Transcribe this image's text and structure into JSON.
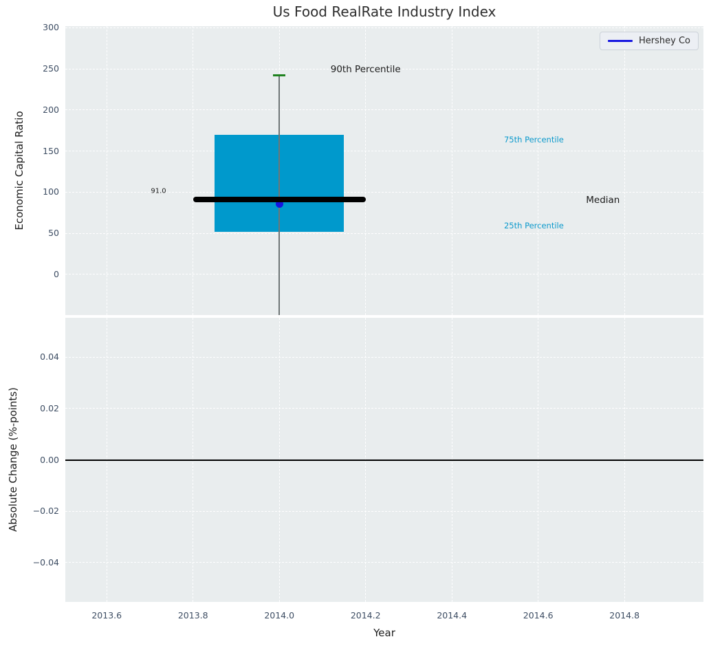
{
  "figure": {
    "title": "Us Food RealRate Industry Index"
  },
  "top_plot": {
    "ylabel": "Economic Capital Ratio",
    "yticks": [
      "300",
      "250",
      "200",
      "150",
      "100",
      "50",
      "0"
    ],
    "ytick_values": [
      300,
      250,
      200,
      150,
      100,
      50,
      0
    ],
    "legend": {
      "label": "Hershey Co"
    }
  },
  "bottom_plot": {
    "ylabel": "Absolute Change (%-points)",
    "yticks": [
      "0.04",
      "0.02",
      "0.00",
      "−0.02",
      "−0.04"
    ],
    "ytick_values": [
      0.04,
      0.02,
      0,
      -0.02,
      -0.04
    ]
  },
  "x_axis": {
    "label": "Year",
    "ticks": [
      "2013.6",
      "2013.8",
      "2014.0",
      "2014.2",
      "2014.4",
      "2014.6",
      "2014.8"
    ],
    "tick_values": [
      2013.6,
      2013.8,
      2014,
      2014.2,
      2014.4,
      2014.6,
      2014.8
    ]
  },
  "colors": {
    "figure_background": "#ffffff",
    "plot_background": "#e9edee",
    "gridline": "#ffffff",
    "tick_label": "#3c4c62",
    "box_fill": "#0099cc",
    "median_line": "#000000",
    "whisker": "#6e7576",
    "p90_cap": "#1e821e",
    "hershey_dot": "#1414e0",
    "legend_line": "#1414e0",
    "percentile_label": "#0b99cc",
    "zero_line": "#000000"
  },
  "chart_data": [
    {
      "type": "boxplot",
      "title": "Us Food RealRate Industry Index",
      "xlabel": "",
      "ylabel": "Economic Capital Ratio",
      "ylim": [
        -49.5,
        302
      ],
      "yticks": [
        0,
        50,
        100,
        150,
        200,
        250,
        300
      ],
      "grid": true,
      "legend_position": "upper right",
      "legend_entries": [
        "Hershey Co"
      ],
      "whisker_x": 2014.0,
      "box_x_range": [
        2013.85,
        2014.15
      ],
      "median_x_range": [
        2013.8,
        2014.2
      ],
      "box": {
        "p25": 52,
        "median": 91.0,
        "p75": 170,
        "p90": 242
      },
      "median_label": "91.0",
      "whisker_low_clipped": true,
      "series": [
        {
          "name": "Hershey Co",
          "type": "scatter",
          "x": [
            2014.0
          ],
          "values": [
            86
          ]
        }
      ],
      "annotations": [
        {
          "text": "90th Percentile",
          "x": 2014.2,
          "y": 249,
          "color": "#1a1a1a",
          "size": 13.5
        },
        {
          "text": "75th Percentile",
          "x": 2014.59,
          "y": 164,
          "color": "#0b99cc",
          "size": 11.5
        },
        {
          "text": "Median",
          "x": 2014.75,
          "y": 90,
          "color": "#1a1a1a",
          "size": 13.5
        },
        {
          "text": "25th Percentile",
          "x": 2014.59,
          "y": 59,
          "color": "#0b99cc",
          "size": 11.5
        },
        {
          "text": "91.0",
          "x": 2013.72,
          "y": 101,
          "color": "#1a1a1a",
          "size": 10
        }
      ]
    },
    {
      "type": "line",
      "xlabel": "Year",
      "ylabel": "Absolute Change (%-points)",
      "xlim": [
        2013.504,
        2014.983
      ],
      "xticks": [
        2013.6,
        2013.8,
        2014,
        2014.2,
        2014.4,
        2014.6,
        2014.8
      ],
      "ylim": [
        -0.0553,
        0.0553
      ],
      "yticks": [
        0.04,
        0.02,
        0,
        -0.02,
        -0.04
      ],
      "grid": true,
      "zero_line_y": 0,
      "x": [],
      "values": []
    }
  ]
}
